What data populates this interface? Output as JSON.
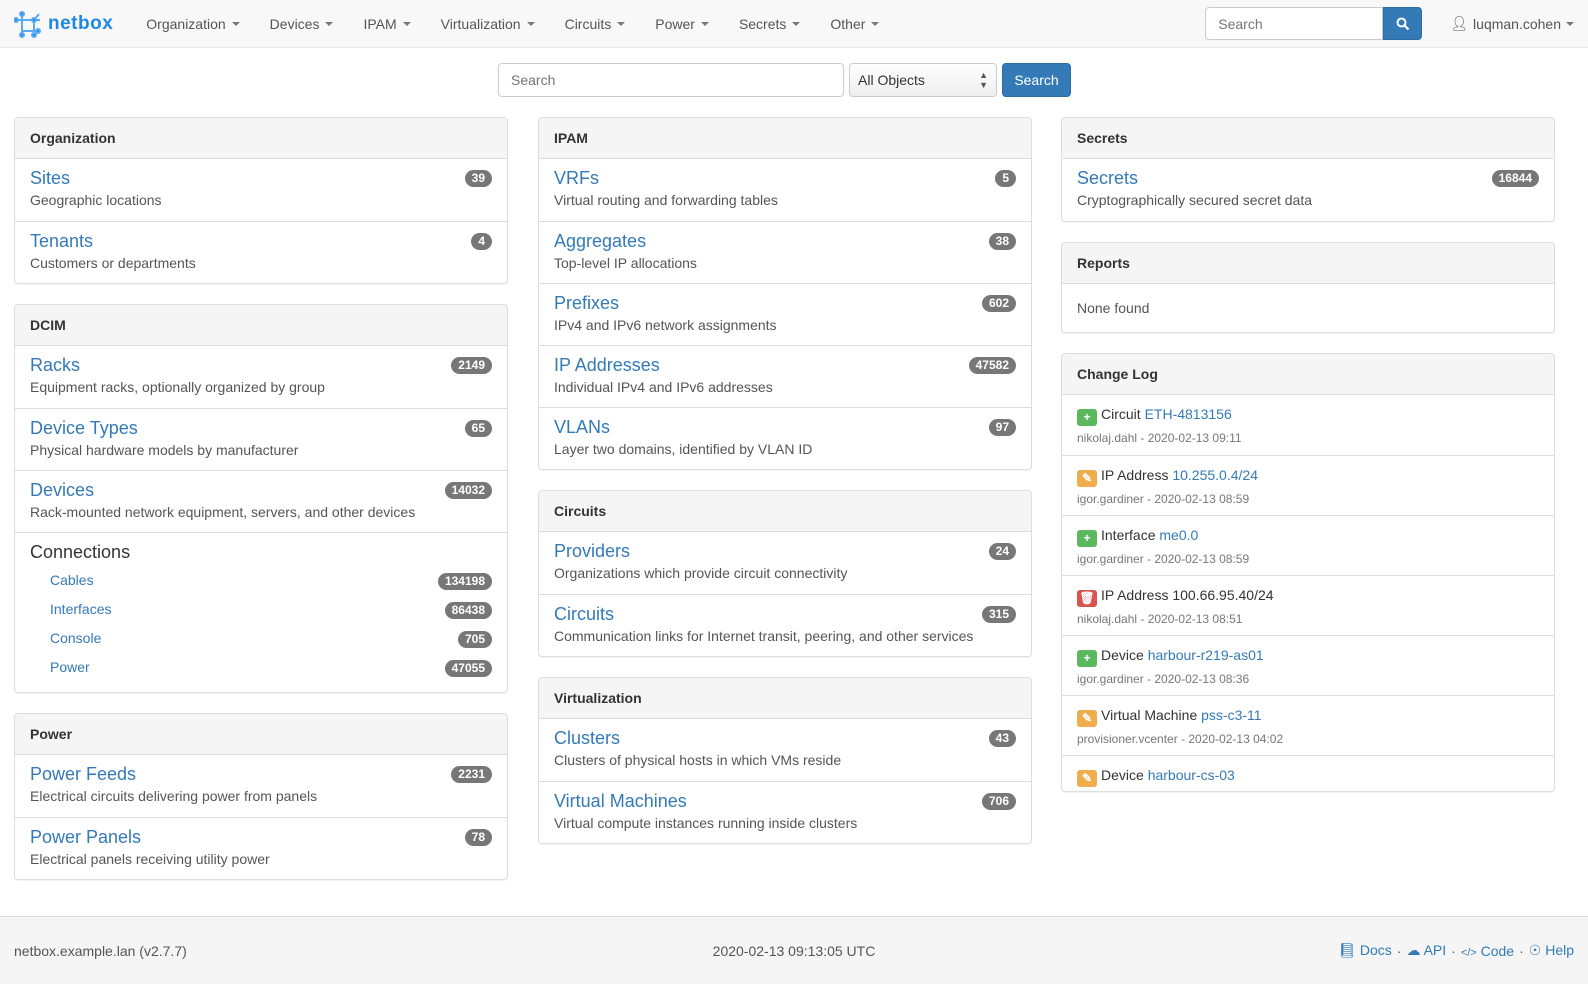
{
  "navbar": {
    "brand": "netbox",
    "menu": [
      "Organization",
      "Devices",
      "IPAM",
      "Virtualization",
      "Circuits",
      "Power",
      "Secrets",
      "Other"
    ],
    "search_placeholder": "Search",
    "user": "luqman.cohen"
  },
  "search": {
    "placeholder": "Search",
    "scope": "All Objects",
    "button": "Search"
  },
  "columns": [
    [
      {
        "title": "Organization",
        "items": [
          {
            "label": "Sites",
            "desc": "Geographic locations",
            "count": "39"
          },
          {
            "label": "Tenants",
            "desc": "Customers or departments",
            "count": "4"
          }
        ]
      },
      {
        "title": "DCIM",
        "items": [
          {
            "label": "Racks",
            "desc": "Equipment racks, optionally organized by group",
            "count": "2149"
          },
          {
            "label": "Device Types",
            "desc": "Physical hardware models by manufacturer",
            "count": "65"
          },
          {
            "label": "Devices",
            "desc": "Rack-mounted network equipment, servers, and other devices",
            "count": "14032"
          }
        ],
        "connections": {
          "title": "Connections",
          "items": [
            {
              "label": "Cables",
              "count": "134198"
            },
            {
              "label": "Interfaces",
              "count": "86438"
            },
            {
              "label": "Console",
              "count": "705"
            },
            {
              "label": "Power",
              "count": "47055"
            }
          ]
        }
      },
      {
        "title": "Power",
        "items": [
          {
            "label": "Power Feeds",
            "desc": "Electrical circuits delivering power from panels",
            "count": "2231"
          },
          {
            "label": "Power Panels",
            "desc": "Electrical panels receiving utility power",
            "count": "78"
          }
        ]
      }
    ],
    [
      {
        "title": "IPAM",
        "items": [
          {
            "label": "VRFs",
            "desc": "Virtual routing and forwarding tables",
            "count": "5"
          },
          {
            "label": "Aggregates",
            "desc": "Top-level IP allocations",
            "count": "38"
          },
          {
            "label": "Prefixes",
            "desc": "IPv4 and IPv6 network assignments",
            "count": "602"
          },
          {
            "label": "IP Addresses",
            "desc": "Individual IPv4 and IPv6 addresses",
            "count": "47582"
          },
          {
            "label": "VLANs",
            "desc": "Layer two domains, identified by VLAN ID",
            "count": "97"
          }
        ]
      },
      {
        "title": "Circuits",
        "items": [
          {
            "label": "Providers",
            "desc": "Organizations which provide circuit connectivity",
            "count": "24"
          },
          {
            "label": "Circuits",
            "desc": "Communication links for Internet transit, peering, and other services",
            "count": "315"
          }
        ]
      },
      {
        "title": "Virtualization",
        "items": [
          {
            "label": "Clusters",
            "desc": "Clusters of physical hosts in which VMs reside",
            "count": "43"
          },
          {
            "label": "Virtual Machines",
            "desc": "Virtual compute instances running inside clusters",
            "count": "706"
          }
        ]
      }
    ],
    [
      {
        "title": "Secrets",
        "items": [
          {
            "label": "Secrets",
            "desc": "Cryptographically secured secret data",
            "count": "16844"
          }
        ]
      },
      {
        "title": "Reports",
        "none": "None found"
      },
      {
        "title": "Change Log",
        "changelog": [
          {
            "action": "create",
            "type": "Circuit",
            "object": "ETH-4813156",
            "meta": "nikolaj.dahl - 2020-02-13 09:11"
          },
          {
            "action": "update",
            "type": "IP Address",
            "object": "10.255.0.4/24",
            "meta": "igor.gardiner - 2020-02-13 08:59"
          },
          {
            "action": "create",
            "type": "Interface",
            "object": "me0.0",
            "meta": "igor.gardiner - 2020-02-13 08:59"
          },
          {
            "action": "delete",
            "type": "IP Address",
            "object": "100.66.95.40/24",
            "meta": "nikolaj.dahl - 2020-02-13 08:51"
          },
          {
            "action": "create",
            "type": "Device",
            "object": "harbour-r219-as01",
            "meta": "igor.gardiner - 2020-02-13 08:36"
          },
          {
            "action": "update",
            "type": "Virtual Machine",
            "object": "pss-c3-11",
            "meta": "provisioner.vcenter - 2020-02-13 04:02"
          },
          {
            "action": "update",
            "type": "Device",
            "object": "harbour-cs-03",
            "meta": ""
          }
        ]
      }
    ]
  ],
  "action_colors": {
    "create": "#5cb85c",
    "update": "#f0ad4e",
    "delete": "#d9534f"
  },
  "footer": {
    "host": "netbox.example.lan (v2.7.7)",
    "time": "2020-02-13 09:13:05 UTC",
    "links": [
      "Docs",
      "API",
      "Code",
      "Help"
    ]
  }
}
